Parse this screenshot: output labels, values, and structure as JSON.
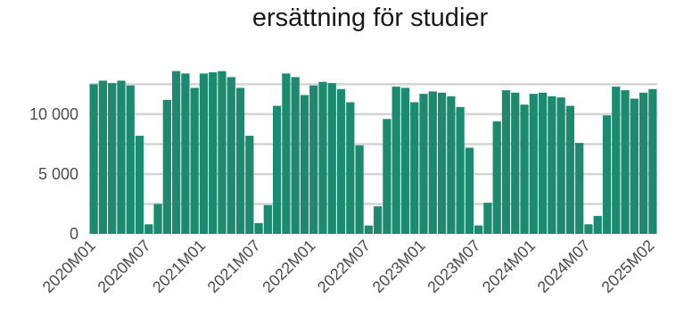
{
  "chart_data": {
    "type": "bar",
    "title": "ersättning för studier",
    "xlabel": "",
    "ylabel": "",
    "ylim": [
      0,
      14000
    ],
    "yticks": [
      0,
      5000,
      10000
    ],
    "ytick_labels": [
      "0",
      "5 000",
      "10 000"
    ],
    "grid": true,
    "color": "#1b8a6f",
    "categories": [
      "2020M01",
      "2020M02",
      "2020M03",
      "2020M04",
      "2020M05",
      "2020M06",
      "2020M07",
      "2020M08",
      "2020M09",
      "2020M10",
      "2020M11",
      "2020M12",
      "2021M01",
      "2021M02",
      "2021M03",
      "2021M04",
      "2021M05",
      "2021M06",
      "2021M07",
      "2021M08",
      "2021M09",
      "2021M10",
      "2021M11",
      "2021M12",
      "2022M01",
      "2022M02",
      "2022M03",
      "2022M04",
      "2022M05",
      "2022M06",
      "2022M07",
      "2022M08",
      "2022M09",
      "2022M10",
      "2022M11",
      "2022M12",
      "2023M01",
      "2023M02",
      "2023M03",
      "2023M04",
      "2023M05",
      "2023M06",
      "2023M07",
      "2023M08",
      "2023M09",
      "2023M10",
      "2023M11",
      "2023M12",
      "2024M01",
      "2024M02",
      "2024M03",
      "2024M04",
      "2024M05",
      "2024M06",
      "2024M07",
      "2024M08",
      "2024M09",
      "2024M10",
      "2024M11",
      "2024M12",
      "2025M01",
      "2025M02"
    ],
    "values": [
      12500,
      12800,
      12600,
      12800,
      12400,
      8200,
      800,
      2500,
      11200,
      13600,
      13400,
      12200,
      13400,
      13500,
      13600,
      13100,
      12200,
      8200,
      900,
      2400,
      10700,
      13400,
      13100,
      11600,
      12400,
      12700,
      12600,
      12100,
      11000,
      7400,
      700,
      2300,
      9600,
      12300,
      12200,
      11000,
      11700,
      11900,
      11800,
      11500,
      10600,
      7200,
      700,
      2600,
      9400,
      12000,
      11800,
      10800,
      11700,
      11800,
      11500,
      11400,
      10700,
      7600,
      800,
      1500,
      9900,
      12300,
      12000,
      11300,
      11800,
      12100
    ],
    "xtick_labels": [
      "2020M01",
      "2020M07",
      "2021M01",
      "2021M07",
      "2022M01",
      "2022M07",
      "2023M01",
      "2023M07",
      "2024M01",
      "2024M07",
      "2025M02"
    ]
  }
}
